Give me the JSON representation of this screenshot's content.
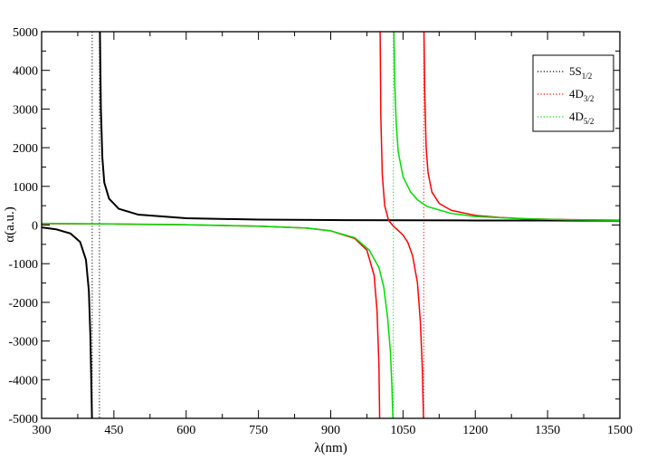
{
  "chart_data": {
    "type": "line",
    "xlabel": "λ(nm)",
    "ylabel": "α(a.u.)",
    "xlim": [
      300,
      1500
    ],
    "ylim": [
      -5000,
      5000
    ],
    "x_ticks": [
      "300",
      "450",
      "600",
      "750",
      "900",
      "1050",
      "1200",
      "1350",
      "1500"
    ],
    "y_ticks": [
      "-5000",
      "-4000",
      "-3000",
      "-2000",
      "-1000",
      "0",
      "1000",
      "2000",
      "3000",
      "4000",
      "5000"
    ],
    "grid": false,
    "legend_position": "top-right",
    "series": [
      {
        "name": "5S1/2",
        "legend_base": "5S",
        "legend_sub": "1/2",
        "color": "#000000",
        "resonances": [
          405,
          420
        ],
        "vertical_markers": [
          405,
          420
        ],
        "segments": [
          {
            "x": [
              300,
              330,
              360,
              380,
              392,
              398,
              401,
              403,
              404.5
            ],
            "y": [
              -60,
              -110,
              -220,
              -440,
              -900,
              -1700,
              -2800,
              -4000,
              -5000
            ]
          },
          {
            "x": [
              421,
              423,
              426,
              430,
              440,
              460,
              500,
              600,
              750,
              900,
              1050,
              1200,
              1350,
              1500
            ],
            "y": [
              5000,
              3000,
              1750,
              1100,
              680,
              420,
              270,
              175,
              140,
              128,
              122,
              118,
              116,
              115
            ]
          }
        ]
      },
      {
        "name": "4D3/2",
        "legend_base": "4D",
        "legend_sub": "3/2",
        "color": "#ff0000",
        "resonances": [
          1002,
          1093
        ],
        "vertical_markers": [
          1093
        ],
        "segments": [
          {
            "x": [
              300,
              450,
              600,
              750,
              850,
              900,
              950,
              975,
              990,
              996,
              1000,
              1001.5
            ],
            "y": [
              35,
              25,
              5,
              -30,
              -80,
              -150,
              -350,
              -650,
              -1300,
              -2200,
              -3600,
              -5000
            ]
          },
          {
            "x": [
              1002.5,
              1004,
              1007,
              1012,
              1020,
              1030,
              1040,
              1050,
              1060,
              1070,
              1080,
              1086,
              1090,
              1092.5
            ],
            "y": [
              5000,
              2800,
              1300,
              500,
              120,
              -30,
              -140,
              -260,
              -450,
              -800,
              -1500,
              -2500,
              -3700,
              -5000
            ]
          },
          {
            "x": [
              1093.5,
              1095,
              1098,
              1102,
              1110,
              1125,
              1150,
              1200,
              1250,
              1300,
              1350,
              1400,
              1450,
              1500
            ],
            "y": [
              5000,
              3500,
              2000,
              1350,
              850,
              560,
              380,
              250,
              195,
              165,
              148,
              138,
              131,
              126
            ]
          }
        ]
      },
      {
        "name": "4D5/2",
        "legend_base": "4D",
        "legend_sub": "5/2",
        "color": "#00dd00",
        "resonances": [
          1030
        ],
        "vertical_markers": [
          1030
        ],
        "segments": [
          {
            "x": [
              300,
              450,
              600,
              750,
              850,
              900,
              950,
              980,
              1000,
              1010,
              1018,
              1024,
              1027,
              1029
            ],
            "y": [
              40,
              30,
              10,
              -30,
              -80,
              -150,
              -330,
              -650,
              -1100,
              -1600,
              -2400,
              -3300,
              -4200,
              -5000
            ]
          },
          {
            "x": [
              1031,
              1033,
              1036,
              1040,
              1050,
              1065,
              1080,
              1100,
              1150,
              1200,
              1300,
              1400,
              1500
            ],
            "y": [
              5000,
              3600,
              2600,
              1900,
              1250,
              870,
              650,
              480,
              300,
              220,
              160,
              135,
              122
            ]
          }
        ]
      }
    ]
  }
}
